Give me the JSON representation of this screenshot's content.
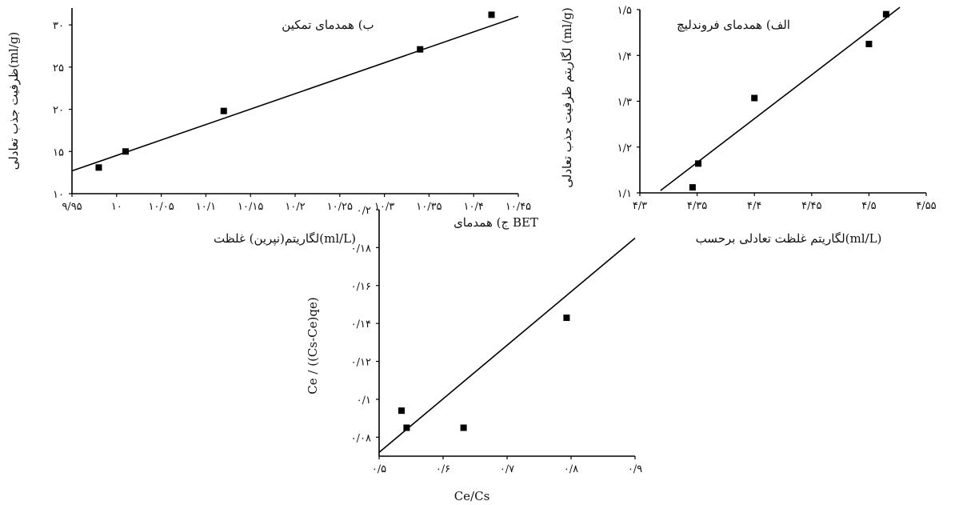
{
  "chart_data": [
    {
      "type": "scatter",
      "title": "ب) همدمای تمکین",
      "xlabel": "لگاریتم(نپرین) غلظت(ml/L)",
      "ylabel": "ظرفیت جذب تعادلی(ml/g)",
      "xlim": [
        9.95,
        10.45
      ],
      "ylim": [
        10,
        32
      ],
      "xticks": [
        9.95,
        10,
        10.05,
        10.1,
        10.15,
        10.2,
        10.25,
        10.3,
        10.35,
        10.4,
        10.45
      ],
      "xtick_labels": [
        "۹/۹۵",
        "۱۰",
        "۱۰/۰۵",
        "۱۰/۱",
        "۱۰/۱۵",
        "۱۰/۲",
        "۱۰/۲۵",
        "۱۰/۳",
        "۱۰/۳۵",
        "۱۰/۴",
        "۱۰/۴۵"
      ],
      "yticks": [
        10,
        15,
        20,
        25,
        30
      ],
      "ytick_labels": [
        "۱۰",
        "۱۵",
        "۲۰",
        "۲۵",
        "۳۰"
      ],
      "points": [
        {
          "x": 9.98,
          "y": 13.1
        },
        {
          "x": 10.01,
          "y": 15.0
        },
        {
          "x": 10.12,
          "y": 19.8
        },
        {
          "x": 10.34,
          "y": 27.1
        },
        {
          "x": 10.42,
          "y": 31.2
        }
      ],
      "trendline": [
        [
          9.95,
          12.7
        ],
        [
          10.45,
          31.0
        ]
      ],
      "grid": false,
      "legend": "none"
    },
    {
      "type": "scatter",
      "title": "الف) همدمای فروندلیچ",
      "xlabel": "لگاریتم غلظت تعادلی برحسب(ml/L)",
      "ylabel": "لگاریتم ظرفیت جذب تعادلی (ml/g)",
      "xlim": [
        4.3,
        4.55
      ],
      "ylim": [
        1.1,
        1.5
      ],
      "xticks": [
        4.3,
        4.35,
        4.4,
        4.45,
        4.5,
        4.55
      ],
      "xtick_labels": [
        "۴/۳",
        "۴/۳۵",
        "۴/۴",
        "۴/۴۵",
        "۴/۵",
        "۴/۵۵"
      ],
      "yticks": [
        1.1,
        1.2,
        1.3,
        1.4,
        1.5
      ],
      "ytick_labels": [
        "۱/۱",
        "۱/۲",
        "۱/۳",
        "۱/۴",
        "۱/۵"
      ],
      "points": [
        {
          "x": 4.346,
          "y": 1.112
        },
        {
          "x": 4.351,
          "y": 1.164
        },
        {
          "x": 4.4,
          "y": 1.307
        },
        {
          "x": 4.5,
          "y": 1.425
        },
        {
          "x": 4.515,
          "y": 1.49
        }
      ],
      "trendline": [
        [
          4.318,
          1.105
        ],
        [
          4.527,
          1.505
        ]
      ],
      "grid": false,
      "legend": "none"
    },
    {
      "type": "scatter",
      "title": "ج) همدمای BET",
      "xlabel": "Ce/Cs",
      "ylabel": "Ce / ((Cs-Ce)qe)",
      "xlim": [
        0.5,
        0.9
      ],
      "ylim": [
        0.07,
        0.2
      ],
      "xticks": [
        0.5,
        0.6,
        0.7,
        0.8,
        0.9
      ],
      "xtick_labels": [
        "۰/۵",
        "۰/۶",
        "۰/۷",
        "۰/۸",
        "۰/۹"
      ],
      "yticks": [
        0.08,
        0.1,
        0.12,
        0.14,
        0.16,
        0.18,
        0.2
      ],
      "ytick_labels": [
        "۰/۰۸",
        "۰/۱",
        "۰/۱۲",
        "۰/۱۴",
        "۰/۱۶",
        "۰/۱۸",
        "۰/۲"
      ],
      "points": [
        {
          "x": 0.535,
          "y": 0.094
        },
        {
          "x": 0.543,
          "y": 0.085
        },
        {
          "x": 0.632,
          "y": 0.085
        },
        {
          "x": 0.793,
          "y": 0.143
        }
      ],
      "trendline": [
        [
          0.5,
          0.072
        ],
        [
          0.9,
          0.185
        ]
      ],
      "grid": false,
      "legend": "none"
    }
  ]
}
